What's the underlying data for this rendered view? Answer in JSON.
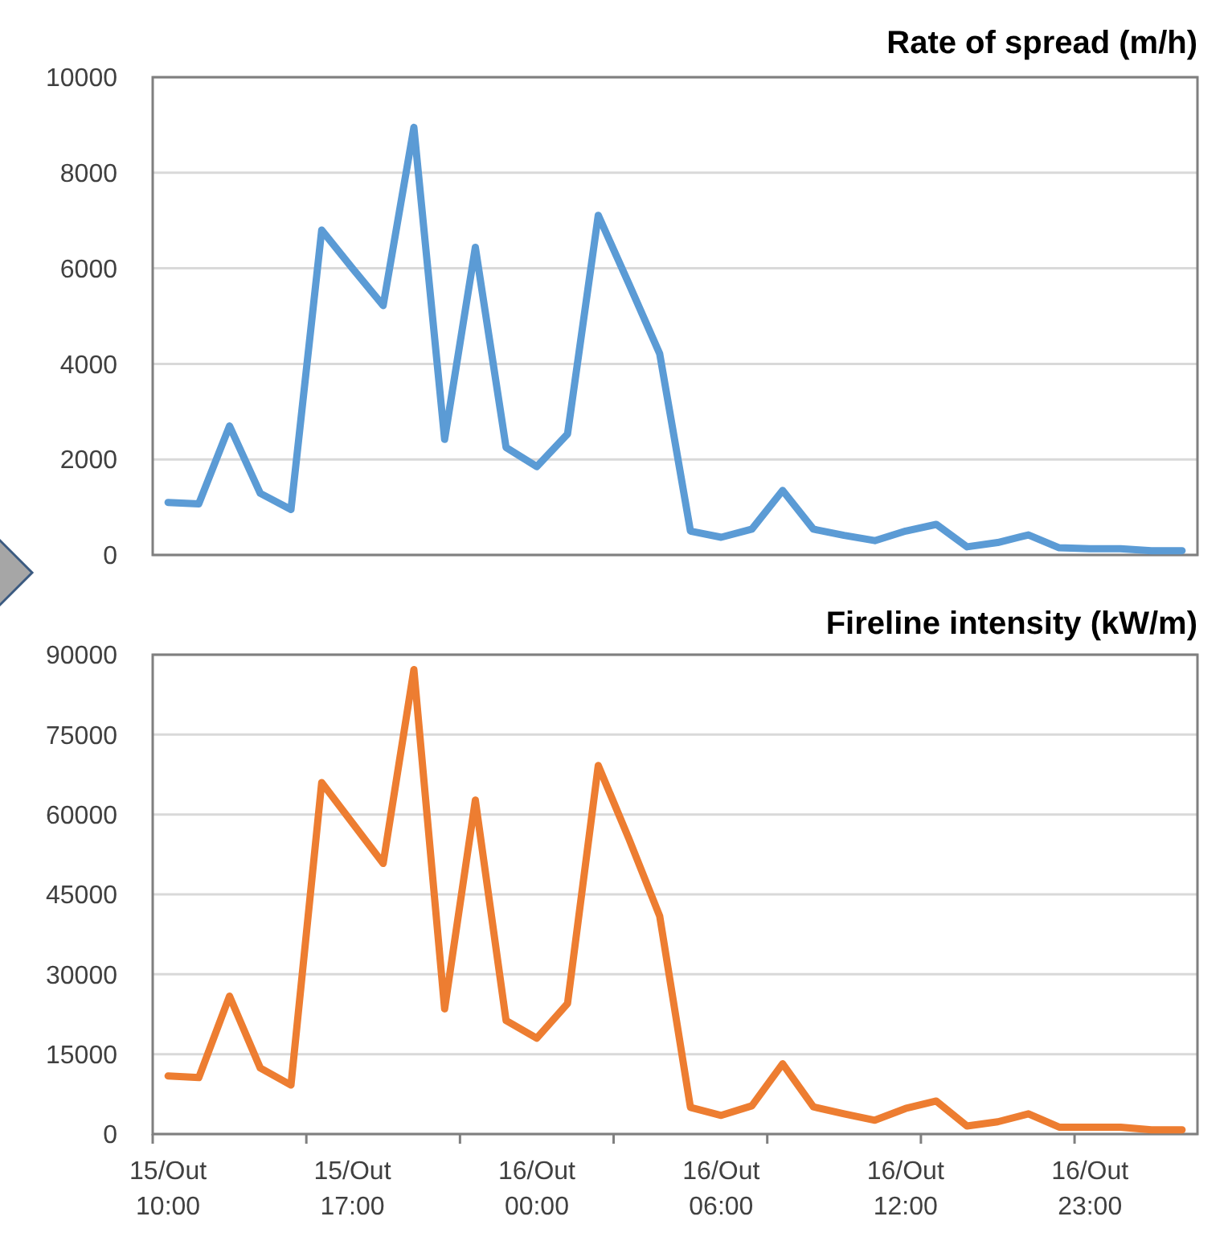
{
  "chart_data": [
    {
      "type": "line",
      "title": "Rate of spread (m/h)",
      "categories": [
        null,
        null,
        null,
        null,
        null,
        null,
        null,
        null,
        null,
        null,
        null,
        null,
        null,
        null,
        null,
        null,
        null,
        null,
        null,
        null,
        null,
        null,
        null,
        null,
        null,
        null,
        null,
        null,
        null,
        null,
        null,
        null,
        null,
        null
      ],
      "series": [
        {
          "color": "#5b9bd5",
          "values": [
            1100,
            1070,
            2700,
            1290,
            950,
            6800,
            6000,
            5220,
            8950,
            2420,
            6440,
            2250,
            1850,
            2530,
            7110,
            5670,
            4210,
            500,
            370,
            540,
            1350,
            540,
            410,
            300,
            500,
            640,
            170,
            260,
            420,
            150,
            130,
            130,
            90,
            90
          ]
        }
      ],
      "ylim": [
        0,
        10000
      ],
      "yticks": [
        0,
        2000,
        4000,
        6000,
        8000,
        10000
      ],
      "grid": "y",
      "tick_labels": "y",
      "marker": "none",
      "line_style": "solid"
    },
    {
      "type": "line",
      "title": "Fireline intensity (kW/m)",
      "categories": [
        "15/Out 10:00",
        null,
        null,
        null,
        null,
        null,
        "15/Out 17:00",
        null,
        null,
        null,
        null,
        null,
        "16/Out 00:00",
        null,
        null,
        null,
        null,
        null,
        "16/Out 06:00",
        null,
        null,
        null,
        null,
        null,
        "16/Out 12:00",
        null,
        null,
        null,
        null,
        null,
        "16/Out 23:00",
        null,
        null,
        null
      ],
      "series": [
        {
          "color": "#ed7d31",
          "values": [
            10900,
            10600,
            25900,
            12400,
            9200,
            66000,
            58400,
            50800,
            87200,
            23500,
            62700,
            21300,
            18000,
            24500,
            69200,
            55400,
            40900,
            5000,
            3500,
            5300,
            13200,
            5100,
            3800,
            2600,
            4800,
            6200,
            1500,
            2300,
            3800,
            1300,
            1300,
            1300,
            800,
            800
          ]
        }
      ],
      "ylim": [
        0,
        90000
      ],
      "yticks": [
        0,
        15000,
        30000,
        45000,
        60000,
        75000,
        90000
      ],
      "grid": "y",
      "marker": "none",
      "line_style": "solid"
    }
  ]
}
